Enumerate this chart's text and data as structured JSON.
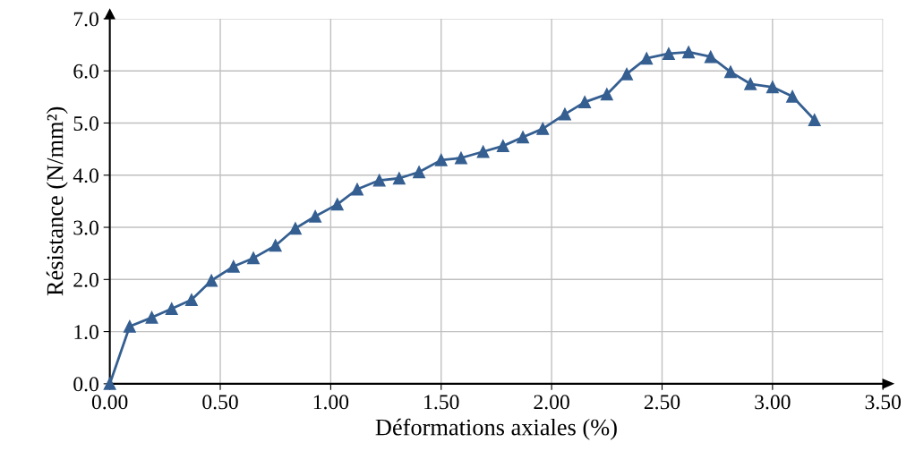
{
  "chart_data": {
    "type": "line",
    "xlabel": "Déformations axiales (%)",
    "ylabel": "Résistance (N/mm²)",
    "xlim": [
      0,
      3.5
    ],
    "xticks": [
      {
        "value": 0,
        "label": "0.00"
      },
      {
        "value": 0.5,
        "label": "0.50"
      },
      {
        "value": 1.0,
        "label": "1.00"
      },
      {
        "value": 1.5,
        "label": "1.50"
      },
      {
        "value": 2.0,
        "label": "2.00"
      },
      {
        "value": 2.5,
        "label": "2.50"
      },
      {
        "value": 3.0,
        "label": "3.00"
      },
      {
        "value": 3.5,
        "label": "3.50"
      }
    ],
    "ylim": [
      0,
      7
    ],
    "yticks": [
      {
        "value": 0,
        "label": "0.0"
      },
      {
        "value": 1,
        "label": "1.0"
      },
      {
        "value": 2,
        "label": "2.0"
      },
      {
        "value": 3,
        "label": "3.0"
      },
      {
        "value": 4,
        "label": "4.0"
      },
      {
        "value": 5,
        "label": "5.0"
      },
      {
        "value": 6,
        "label": "6.0"
      },
      {
        "value": 7,
        "label": "7.0"
      }
    ],
    "grid": true,
    "marker": "triangle",
    "line_style": "solid",
    "x": [
      0,
      0.09,
      0.19,
      0.28,
      0.37,
      0.46,
      0.56,
      0.65,
      0.75,
      0.84,
      0.93,
      1.03,
      1.12,
      1.22,
      1.31,
      1.4,
      1.5,
      1.59,
      1.69,
      1.78,
      1.87,
      1.96,
      2.06,
      2.15,
      2.25,
      2.34,
      2.43,
      2.53,
      2.62,
      2.72,
      2.81,
      2.9,
      3.0,
      3.09,
      3.19
    ],
    "series": [
      {
        "color": "#355f91",
        "values": [
          0,
          1.1,
          1.27,
          1.44,
          1.61,
          1.98,
          2.25,
          2.41,
          2.65,
          2.98,
          3.21,
          3.44,
          3.73,
          3.9,
          3.94,
          4.06,
          4.29,
          4.33,
          4.45,
          4.56,
          4.73,
          4.89,
          5.17,
          5.4,
          5.55,
          5.94,
          6.24,
          6.33,
          6.36,
          6.27,
          5.98,
          5.75,
          5.69,
          5.51,
          5.06
        ]
      }
    ]
  }
}
